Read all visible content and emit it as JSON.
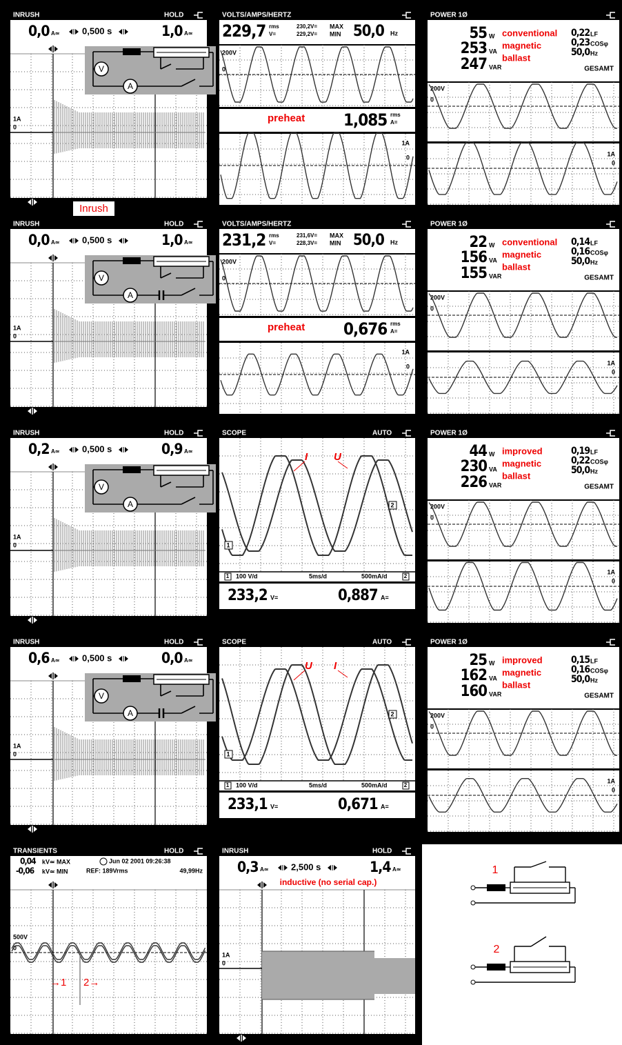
{
  "panels": [
    {
      "kind": "inrush",
      "header": "INRUSH",
      "mode": "HOLD",
      "left": "0,0",
      "left_unit": "A≃",
      "time": "0,500 s",
      "right": "1,0",
      "right_unit": "A≃",
      "scale": "1A",
      "zero": "0",
      "meter_v": "V",
      "meter_a": "A",
      "capacitor": false,
      "caption": "Inrush"
    },
    {
      "kind": "volts",
      "header": "VOLTS/AMPS/HERTZ",
      "value": "229,7",
      "rms": "rms",
      "unit": "V=",
      "max": "230,2V=",
      "min": "229,2V=",
      "max_label": "MAX",
      "min_label": "MIN",
      "freq": "50,0",
      "freq_unit": "Hz",
      "v_scale": "200V",
      "v_zero": "0",
      "note": "preheat",
      "current": "1,085",
      "current_rms": "rms",
      "current_unit": "A=",
      "i_scale": "1A",
      "i_zero": "0"
    },
    {
      "kind": "power",
      "header": "POWER 1Ø",
      "watts": "55",
      "watts_unit": "W",
      "va": "253",
      "va_unit": "VA",
      "var": "247",
      "var_unit": "VAR",
      "note": [
        "conventional",
        "magnetic",
        "ballast"
      ],
      "lf": "0,22",
      "lf_unit": "LF",
      "cos": "0,23",
      "cos_unit": "COSφ",
      "freq": "50,0",
      "freq_unit": "Hz",
      "total": "GESAMT",
      "v_scale": "200V",
      "v_zero": "0",
      "i_scale": "1A",
      "i_zero": "0"
    },
    {
      "kind": "inrush",
      "header": "INRUSH",
      "mode": "HOLD",
      "left": "0,0",
      "left_unit": "A≃",
      "time": "0,500 s",
      "right": "1,0",
      "right_unit": "A≃",
      "scale": "1A",
      "zero": "0",
      "meter_v": "V",
      "meter_a": "A",
      "capacitor": true
    },
    {
      "kind": "volts",
      "header": "VOLTS/AMPS/HERTZ",
      "value": "231,2",
      "rms": "rms",
      "unit": "V=",
      "max": "231,6V=",
      "min": "228,3V=",
      "max_label": "MAX",
      "min_label": "MIN",
      "freq": "50,0",
      "freq_unit": "Hz",
      "v_scale": "200V",
      "v_zero": "0",
      "note": "preheat",
      "current": "0,676",
      "current_rms": "rms",
      "current_unit": "A=",
      "i_scale": "1A",
      "i_zero": "0"
    },
    {
      "kind": "power",
      "header": "POWER 1Ø",
      "watts": "22",
      "watts_unit": "W",
      "va": "156",
      "va_unit": "VA",
      "var": "155",
      "var_unit": "VAR",
      "note": [
        "conventional",
        "magnetic",
        "ballast"
      ],
      "lf": "0,14",
      "lf_unit": "LF",
      "cos": "0,16",
      "cos_unit": "COSφ",
      "freq": "50,0",
      "freq_unit": "Hz",
      "total": "GESAMT",
      "v_scale": "200V",
      "v_zero": "0",
      "i_scale": "1A",
      "i_zero": "0"
    },
    {
      "kind": "inrush",
      "header": "INRUSH",
      "mode": "HOLD",
      "left": "0,2",
      "left_unit": "A≃",
      "time": "0,500 s",
      "right": "0,9",
      "right_unit": "A≃",
      "scale": "1A",
      "zero": "0",
      "meter_v": "V",
      "meter_a": "A",
      "capacitor": false
    },
    {
      "kind": "scope",
      "header": "SCOPE",
      "mode": "AUTO",
      "labels": [
        "I",
        "U"
      ],
      "ch1": "1",
      "ch2": "2",
      "v_div": "100 V/d",
      "t_div": "5ms/d",
      "i_div": "500mA/d",
      "voltage": "233,2",
      "voltage_unit": "V=",
      "current": "0,887",
      "current_unit": "A="
    },
    {
      "kind": "power",
      "header": "POWER 1Ø",
      "watts": "44",
      "watts_unit": "W",
      "va": "230",
      "va_unit": "VA",
      "var": "226",
      "var_unit": "VAR",
      "note": [
        "improved",
        "magnetic",
        "ballast"
      ],
      "lf": "0,19",
      "lf_unit": "LF",
      "cos": "0,22",
      "cos_unit": "COSφ",
      "freq": "50,0",
      "freq_unit": "Hz",
      "total": "GESAMT",
      "v_scale": "200V",
      "v_zero": "0",
      "i_scale": "1A",
      "i_zero": "0"
    },
    {
      "kind": "inrush",
      "header": "INRUSH",
      "mode": "HOLD",
      "left": "0,6",
      "left_unit": "A≃",
      "time": "0,500 s",
      "right": "0,0",
      "right_unit": "A≃",
      "scale": "1A",
      "zero": "0",
      "meter_v": "V",
      "meter_a": "A",
      "capacitor": true
    },
    {
      "kind": "scope",
      "header": "SCOPE",
      "mode": "AUTO",
      "labels": [
        "U",
        "I"
      ],
      "ch1": "1",
      "ch2": "2",
      "v_div": "100 V/d",
      "t_div": "5ms/d",
      "i_div": "500mA/d",
      "voltage": "233,1",
      "voltage_unit": "V=",
      "current": "0,671",
      "current_unit": "A="
    },
    {
      "kind": "power",
      "header": "POWER 1Ø",
      "watts": "25",
      "watts_unit": "W",
      "va": "162",
      "va_unit": "VA",
      "var": "160",
      "var_unit": "VAR",
      "note": [
        "improved",
        "magnetic",
        "ballast"
      ],
      "lf": "0,15",
      "lf_unit": "LF",
      "cos": "0,16",
      "cos_unit": "COSφ",
      "freq": "50,0",
      "freq_unit": "Hz",
      "total": "GESAMT",
      "v_scale": "200V",
      "v_zero": "0",
      "i_scale": "1A",
      "i_zero": "0"
    },
    {
      "kind": "transients",
      "header": "TRANSIENTS",
      "mode": "HOLD",
      "max": "0,04",
      "max_unit": "kV≃ MAX",
      "min": "-0,06",
      "min_unit": "kV≃ MIN",
      "date": "Jun 02 2001  09:26:38",
      "ref": "REF: 189Vrms",
      "freq": "49,99Hz",
      "scale": "500V",
      "zero": "0",
      "marker1": "→1",
      "marker2": "2→"
    },
    {
      "kind": "inrush",
      "header": "INRUSH",
      "mode": "HOLD",
      "left": "0,3",
      "left_unit": "A≃",
      "time": "2,500 s",
      "right": "1,4",
      "right_unit": "A≃",
      "scale": "1A",
      "zero": "0",
      "note": "inductive (no serial cap.)"
    },
    {
      "kind": "diagram",
      "labels": [
        "1",
        "2"
      ]
    }
  ]
}
